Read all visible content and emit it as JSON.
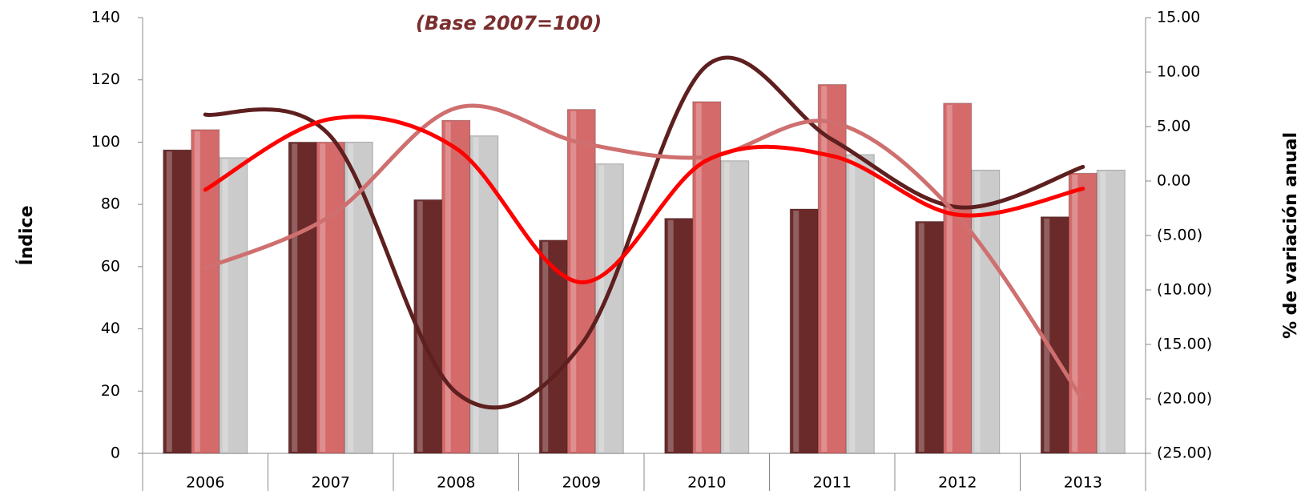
{
  "chart_data": {
    "type": "bar",
    "subtitle": "(Base 2007=100)",
    "y_label": "Índice",
    "y2_label": "% de variación anual",
    "categories": [
      "2006",
      "2007",
      "2008",
      "2009",
      "2010",
      "2011",
      "2012",
      "2013"
    ],
    "ylim": [
      0,
      140
    ],
    "yticks": [
      0,
      20,
      40,
      60,
      80,
      100,
      120,
      140
    ],
    "y2lim": [
      -25,
      15
    ],
    "y2ticks": [
      {
        "value": -25,
        "label": "(25.00)"
      },
      {
        "value": -20,
        "label": "(20.00)"
      },
      {
        "value": -15,
        "label": "(15.00)"
      },
      {
        "value": -10,
        "label": "(10.00)"
      },
      {
        "value": -5,
        "label": "(5.00)"
      },
      {
        "value": 0,
        "label": "0.00"
      },
      {
        "value": 5,
        "label": "5.00"
      },
      {
        "value": 10,
        "label": "10.00"
      },
      {
        "value": 15,
        "label": "15.00"
      }
    ],
    "series": [
      {
        "type": "bar",
        "color": "#6b2a2a",
        "values": [
          97.5,
          100,
          81.5,
          68.5,
          75.5,
          78.5,
          74.5,
          76
        ]
      },
      {
        "type": "bar",
        "color": "#d56a6a",
        "values": [
          104,
          100,
          107,
          110.5,
          113,
          118.5,
          112.5,
          90
        ]
      },
      {
        "type": "bar",
        "color": "#cbcbcb",
        "values": [
          95,
          100,
          102,
          93,
          94,
          96,
          91,
          91
        ]
      },
      {
        "type": "line",
        "axis": "y2",
        "color": "#5e1f1f",
        "values": [
          6.1,
          4.1,
          -19.4,
          -15,
          10.6,
          3.8,
          -2.4,
          1.3
        ]
      },
      {
        "type": "line",
        "axis": "y2",
        "color": "#cf6f6f",
        "values": [
          -8,
          -3.2,
          6.7,
          3.5,
          2.2,
          5.4,
          -3.2,
          -20.1
        ]
      },
      {
        "type": "line",
        "axis": "y2",
        "color": "#ff0000",
        "values": [
          -0.8,
          5.7,
          3,
          -9.3,
          1.9,
          2.3,
          -3.1,
          -0.7
        ]
      }
    ]
  }
}
